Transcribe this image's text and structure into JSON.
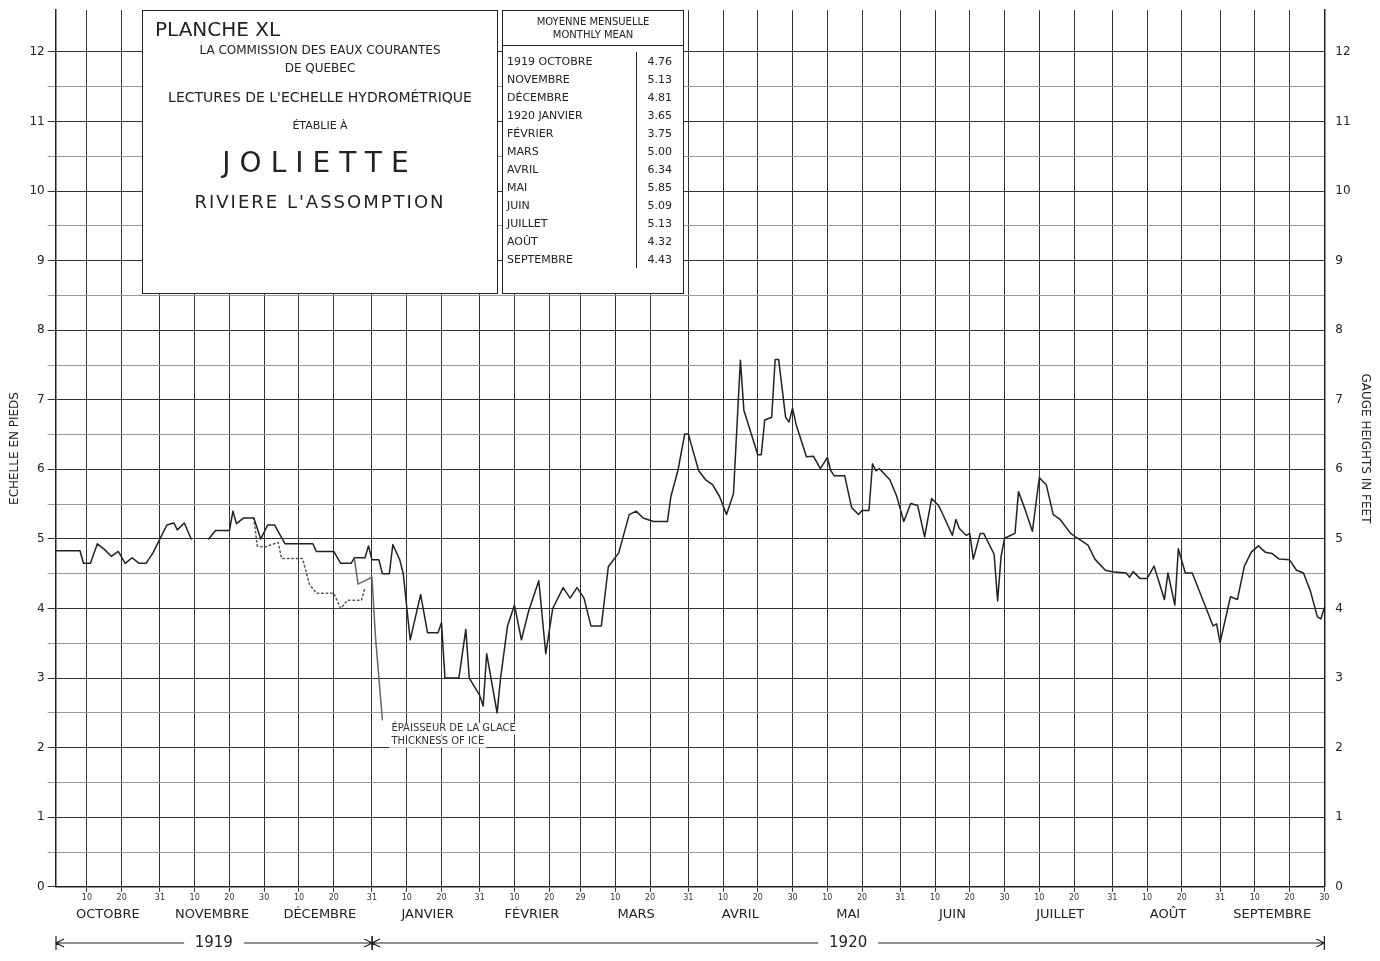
{
  "chart_data": [
    {
      "type": "line",
      "title": "PLANCHE XL",
      "subtitle": "LA COMMISSION DES EAUX COURANTES",
      "annotations": [
        "DE QUEBEC",
        "LECTURES DE L'ECHELLE HYDROMÉTRIQUE",
        "ÉTABLIE À",
        "JOLIETTE",
        "RIVIERE L'ASSOMPTION",
        {
          "text": "ÉPAISSEUR DE LA GLACE\nTHICKNESS OF ICE",
          "x": "1920-01-03",
          "y": 2.4
        },
        "1919",
        "1920"
      ],
      "ylabel": "ECHELLE EN PIEDS",
      "y2label": "GAUGE HEIGHTS IN FEET",
      "xlim": [
        "1919-10-01",
        "1920-09-30"
      ],
      "xticks": [
        {
          "value": "1919-10-10",
          "label": "10"
        },
        {
          "value": "1919-10-20",
          "label": "20"
        },
        {
          "value": "1919-10-31",
          "label": "31"
        },
        {
          "value": "1919-11-10",
          "label": "10"
        },
        {
          "value": "1919-11-20",
          "label": "20"
        },
        {
          "value": "1919-11-30",
          "label": "30"
        },
        {
          "value": "1919-12-10",
          "label": "10"
        },
        {
          "value": "1919-12-20",
          "label": "20"
        },
        {
          "value": "1919-12-31",
          "label": "31"
        },
        {
          "value": "1920-01-10",
          "label": "10"
        },
        {
          "value": "1920-01-20",
          "label": "20"
        },
        {
          "value": "1920-01-31",
          "label": "31"
        },
        {
          "value": "1920-02-10",
          "label": "10"
        },
        {
          "value": "1920-02-20",
          "label": "20"
        },
        {
          "value": "1920-02-29",
          "label": "29"
        },
        {
          "value": "1920-03-10",
          "label": "10"
        },
        {
          "value": "1920-03-20",
          "label": "20"
        },
        {
          "value": "1920-03-31",
          "label": "31"
        },
        {
          "value": "1920-04-10",
          "label": "10"
        },
        {
          "value": "1920-04-20",
          "label": "20"
        },
        {
          "value": "1920-04-30",
          "label": "30"
        },
        {
          "value": "1920-05-10",
          "label": "10"
        },
        {
          "value": "1920-05-20",
          "label": "20"
        },
        {
          "value": "1920-05-31",
          "label": "31"
        },
        {
          "value": "1920-06-10",
          "label": "10"
        },
        {
          "value": "1920-06-20",
          "label": "20"
        },
        {
          "value": "1920-06-30",
          "label": "30"
        },
        {
          "value": "1920-07-10",
          "label": "10"
        },
        {
          "value": "1920-07-20",
          "label": "20"
        },
        {
          "value": "1920-07-31",
          "label": "31"
        },
        {
          "value": "1920-08-10",
          "label": "10"
        },
        {
          "value": "1920-08-20",
          "label": "20"
        },
        {
          "value": "1920-08-31",
          "label": "31"
        },
        {
          "value": "1920-09-10",
          "label": "10"
        },
        {
          "value": "1920-09-20",
          "label": "20"
        },
        {
          "value": "1920-09-30",
          "label": "30"
        }
      ],
      "x2lim": [
        "1919-10-01",
        "1920-09-30"
      ],
      "x2ticks": [
        {
          "value": "1919-10-16",
          "label": "OCTOBRE"
        },
        {
          "value": "1919-11-15",
          "label": "NOVEMBRE"
        },
        {
          "value": "1919-12-16",
          "label": "DÉCEMBRE"
        },
        {
          "value": "1920-01-16",
          "label": "JANVIER"
        },
        {
          "value": "1920-02-15",
          "label": "FÉVRIER"
        },
        {
          "value": "1920-03-16",
          "label": "MARS"
        },
        {
          "value": "1920-04-15",
          "label": "AVRIL"
        },
        {
          "value": "1920-05-16",
          "label": "MAI"
        },
        {
          "value": "1920-06-15",
          "label": "JUIN"
        },
        {
          "value": "1920-07-16",
          "label": "JUILLET"
        },
        {
          "value": "1920-08-16",
          "label": "AOÛT"
        },
        {
          "value": "1920-09-15",
          "label": "SEPTEMBRE"
        }
      ],
      "ylim": [
        0,
        12.6
      ],
      "yticks": [
        0,
        {
          "value": 0.5,
          "label": null
        },
        1,
        {
          "value": 1.5,
          "label": null
        },
        2,
        {
          "value": 2.5,
          "label": null
        },
        3,
        {
          "value": 3.5,
          "label": null
        },
        4,
        {
          "value": 4.5,
          "label": null
        },
        5,
        {
          "value": 5.5,
          "label": null
        },
        6,
        {
          "value": 6.5,
          "label": null
        },
        7,
        {
          "value": 7.5,
          "label": null
        },
        8,
        {
          "value": 8.5,
          "label": null
        },
        9,
        {
          "value": 9.5,
          "label": null
        },
        10,
        {
          "value": 10.5,
          "label": null
        },
        11,
        {
          "value": 11.5,
          "label": null
        },
        12
      ],
      "y2lim": [
        0,
        12.6
      ],
      "y2ticks": [
        0,
        1,
        2,
        3,
        4,
        5,
        6,
        7,
        8,
        9,
        10,
        11,
        12
      ],
      "grid": true,
      "legend": false,
      "marker": "none",
      "series": [
        {
          "color": "#222222",
          "line_style": "solid",
          "x": [
            "1919-10-01",
            "1919-10-08",
            "1919-10-09",
            "1919-10-11",
            "1919-10-13",
            "1919-10-15",
            "1919-10-17",
            "1919-10-19",
            "1919-10-21",
            "1919-10-23",
            "1919-10-25",
            "1919-10-27",
            "1919-10-29",
            "1919-10-31",
            "1919-11-02",
            "1919-11-04",
            "1919-11-05",
            "1919-11-07",
            "1919-11-09",
            "1919-11-11",
            "1919-11-14",
            "1919-11-16",
            "1919-11-20",
            "1919-11-21",
            "1919-11-22",
            "1919-11-24",
            "1919-11-27",
            "1919-11-29",
            "1919-12-01",
            "1919-12-03",
            "1919-12-06",
            "1919-12-14",
            "1919-12-15",
            "1919-12-20",
            "1919-12-22",
            "1919-12-25",
            "1919-12-26",
            "1919-12-29",
            "1919-12-30",
            "1919-12-31",
            "1920-01-02",
            "1920-01-03",
            "1920-01-05",
            "1920-01-06",
            "1920-01-08",
            "1920-01-09",
            "1920-01-11",
            "1920-01-14",
            "1920-01-16",
            "1920-01-19",
            "1920-01-20",
            "1920-01-21",
            "1920-01-25",
            "1920-01-27",
            "1920-01-28",
            "1920-01-31",
            "1920-02-01",
            "1920-02-02",
            "1920-02-05",
            "1920-02-06",
            "1920-02-08",
            "1920-02-10",
            "1920-02-12",
            "1920-02-14",
            "1920-02-17",
            "1920-02-19",
            "1920-02-21",
            "1920-02-24",
            "1920-02-26",
            "1920-02-28",
            "1920-03-01",
            "1920-03-03",
            "1920-03-06",
            "1920-03-08",
            "1920-03-11",
            "1920-03-14",
            "1920-03-16",
            "1920-03-18",
            "1920-03-21",
            "1920-03-25",
            "1920-03-26",
            "1920-03-28",
            "1920-03-30",
            "1920-03-31",
            "1920-04-03",
            "1920-04-05",
            "1920-04-07",
            "1920-04-09",
            "1920-04-11",
            "1920-04-13",
            "1920-04-15",
            "1920-04-16",
            "1920-04-20",
            "1920-04-21",
            "1920-04-22",
            "1920-04-24",
            "1920-04-25",
            "1920-04-26",
            "1920-04-28",
            "1920-04-29",
            "1920-04-30",
            "1920-05-01",
            "1920-05-04",
            "1920-05-06",
            "1920-05-08",
            "1920-05-10",
            "1920-05-11",
            "1920-05-12",
            "1920-05-15",
            "1920-05-17",
            "1920-05-19",
            "1920-05-20",
            "1920-05-22",
            "1920-05-23",
            "1920-05-24",
            "1920-05-25",
            "1920-05-28",
            "1920-05-30",
            "1920-06-01",
            "1920-06-03",
            "1920-06-05",
            "1920-06-07",
            "1920-06-09",
            "1920-06-11",
            "1920-06-12",
            "1920-06-15",
            "1920-06-16",
            "1920-06-17",
            "1920-06-19",
            "1920-06-20",
            "1920-06-21",
            "1920-06-23",
            "1920-06-24",
            "1920-06-27",
            "1920-06-28",
            "1920-06-29",
            "1920-06-30",
            "1920-07-03",
            "1920-07-04",
            "1920-07-06",
            "1920-07-08",
            "1920-07-10",
            "1920-07-12",
            "1920-07-14",
            "1920-07-16",
            "1920-07-19",
            "1920-07-21",
            "1920-07-24",
            "1920-07-26",
            "1920-07-29",
            "1920-07-31",
            "1920-08-04",
            "1920-08-05",
            "1920-08-06",
            "1920-08-08",
            "1920-08-10",
            "1920-08-12",
            "1920-08-15",
            "1920-08-16",
            "1920-08-18",
            "1920-08-19",
            "1920-08-21",
            "1920-08-23",
            "1920-08-29",
            "1920-08-30",
            "1920-08-31",
            "1920-09-02",
            "1920-09-03",
            "1920-09-05",
            "1920-09-07",
            "1920-09-09",
            "1920-09-11",
            "1920-09-13",
            "1920-09-15",
            "1920-09-17",
            "1920-09-20",
            "1920-09-22",
            "1920-09-24",
            "1920-09-26",
            "1920-09-28",
            "1920-09-29",
            "1920-09-30"
          ],
          "values": [
            4.83,
            4.83,
            4.65,
            4.65,
            4.93,
            4.85,
            4.75,
            4.82,
            4.65,
            4.73,
            4.65,
            4.65,
            4.8,
            5.0,
            5.2,
            5.23,
            5.13,
            5.23,
            5.0,
            null,
            5.0,
            5.12,
            5.12,
            5.4,
            5.22,
            5.3,
            5.3,
            5.0,
            5.2,
            5.2,
            4.93,
            4.93,
            4.82,
            4.82,
            4.65,
            4.65,
            4.73,
            4.73,
            4.9,
            4.7,
            4.7,
            4.5,
            4.5,
            4.92,
            4.7,
            4.5,
            3.55,
            4.2,
            3.65,
            3.65,
            3.8,
            3.0,
            3.0,
            3.7,
            3.0,
            2.75,
            2.6,
            3.35,
            2.5,
            3.0,
            3.75,
            4.05,
            3.55,
            3.95,
            4.4,
            3.35,
            4.0,
            4.3,
            4.15,
            4.3,
            4.15,
            3.75,
            3.75,
            4.6,
            4.8,
            5.35,
            5.4,
            5.3,
            5.25,
            5.25,
            5.61,
            5.98,
            6.51,
            6.51,
            5.98,
            5.85,
            5.78,
            5.61,
            5.35,
            5.65,
            7.57,
            6.85,
            6.21,
            6.21,
            6.71,
            6.75,
            7.58,
            7.58,
            6.75,
            6.68,
            6.88,
            6.65,
            6.18,
            6.19,
            6.01,
            6.17,
            5.98,
            5.91,
            5.91,
            5.45,
            5.35,
            5.41,
            5.41,
            6.08,
            5.98,
            6.01,
            5.85,
            5.61,
            5.25,
            5.51,
            5.48,
            5.03,
            5.58,
            5.48,
            5.38,
            5.05,
            5.28,
            5.15,
            5.05,
            5.08,
            4.71,
            5.08,
            5.08,
            4.78,
            4.11,
            4.75,
            5.01,
            5.08,
            5.68,
            5.41,
            5.11,
            5.88,
            5.78,
            5.35,
            5.28,
            5.08,
            5.01,
            4.91,
            4.71,
            4.55,
            4.53,
            4.51,
            4.45,
            4.53,
            4.43,
            4.43,
            4.61,
            4.13,
            4.51,
            4.05,
            4.86,
            4.51,
            4.51,
            3.75,
            3.78,
            3.51,
            3.95,
            4.17,
            4.13,
            4.61,
            4.81,
            4.9,
            4.81,
            4.79,
            4.71,
            4.7,
            4.55,
            4.51,
            4.25,
            3.88,
            3.85,
            4.01
          ]
        },
        {
          "color": "#555555",
          "line_style": "dotted",
          "x": [
            "1919-11-27",
            "1919-11-28",
            "1919-11-30",
            "1919-12-04",
            "1919-12-05",
            "1919-12-11",
            "1919-12-13",
            "1919-12-15",
            "1919-12-20",
            "1919-12-22",
            "1919-12-24",
            "1919-12-28",
            "1919-12-29"
          ],
          "values": [
            5.3,
            4.9,
            4.88,
            4.95,
            4.72,
            4.72,
            4.35,
            4.22,
            4.22,
            4.0,
            4.12,
            4.12,
            4.3
          ]
        },
        {
          "color": "#666666",
          "line_style": "solid",
          "x": [
            "1919-12-26",
            "1919-12-27",
            "1919-12-29",
            "1919-12-31",
            "1920-01-01",
            "1920-01-02",
            "1920-01-03"
          ],
          "values": [
            4.7,
            4.35,
            4.4,
            4.45,
            3.6,
            3.0,
            2.4
          ]
        }
      ]
    },
    {
      "type": "other",
      "title": "MOYENNE MENSUELLE",
      "subtitle": "MONTHLY MEAN",
      "categories": [
        "1919 OCTOBRE",
        "NOVEMBRE",
        "DÉCEMBRE",
        "1920 JANVIER",
        "FÉVRIER",
        "MARS",
        "AVRIL",
        "MAI",
        "JUIN",
        "JUILLET",
        "AOÛT",
        "SEPTEMBRE"
      ],
      "values": [
        4.76,
        5.13,
        4.81,
        3.65,
        3.75,
        5.0,
        6.34,
        5.85,
        5.09,
        5.13,
        4.32,
        4.43
      ],
      "value_labels": [
        "4.76",
        "5.13",
        "4.81",
        "3.65",
        "3.75",
        "5.00",
        "6.34",
        "5.85",
        "5.09",
        "5.13",
        "4.32",
        "4.43"
      ]
    }
  ]
}
